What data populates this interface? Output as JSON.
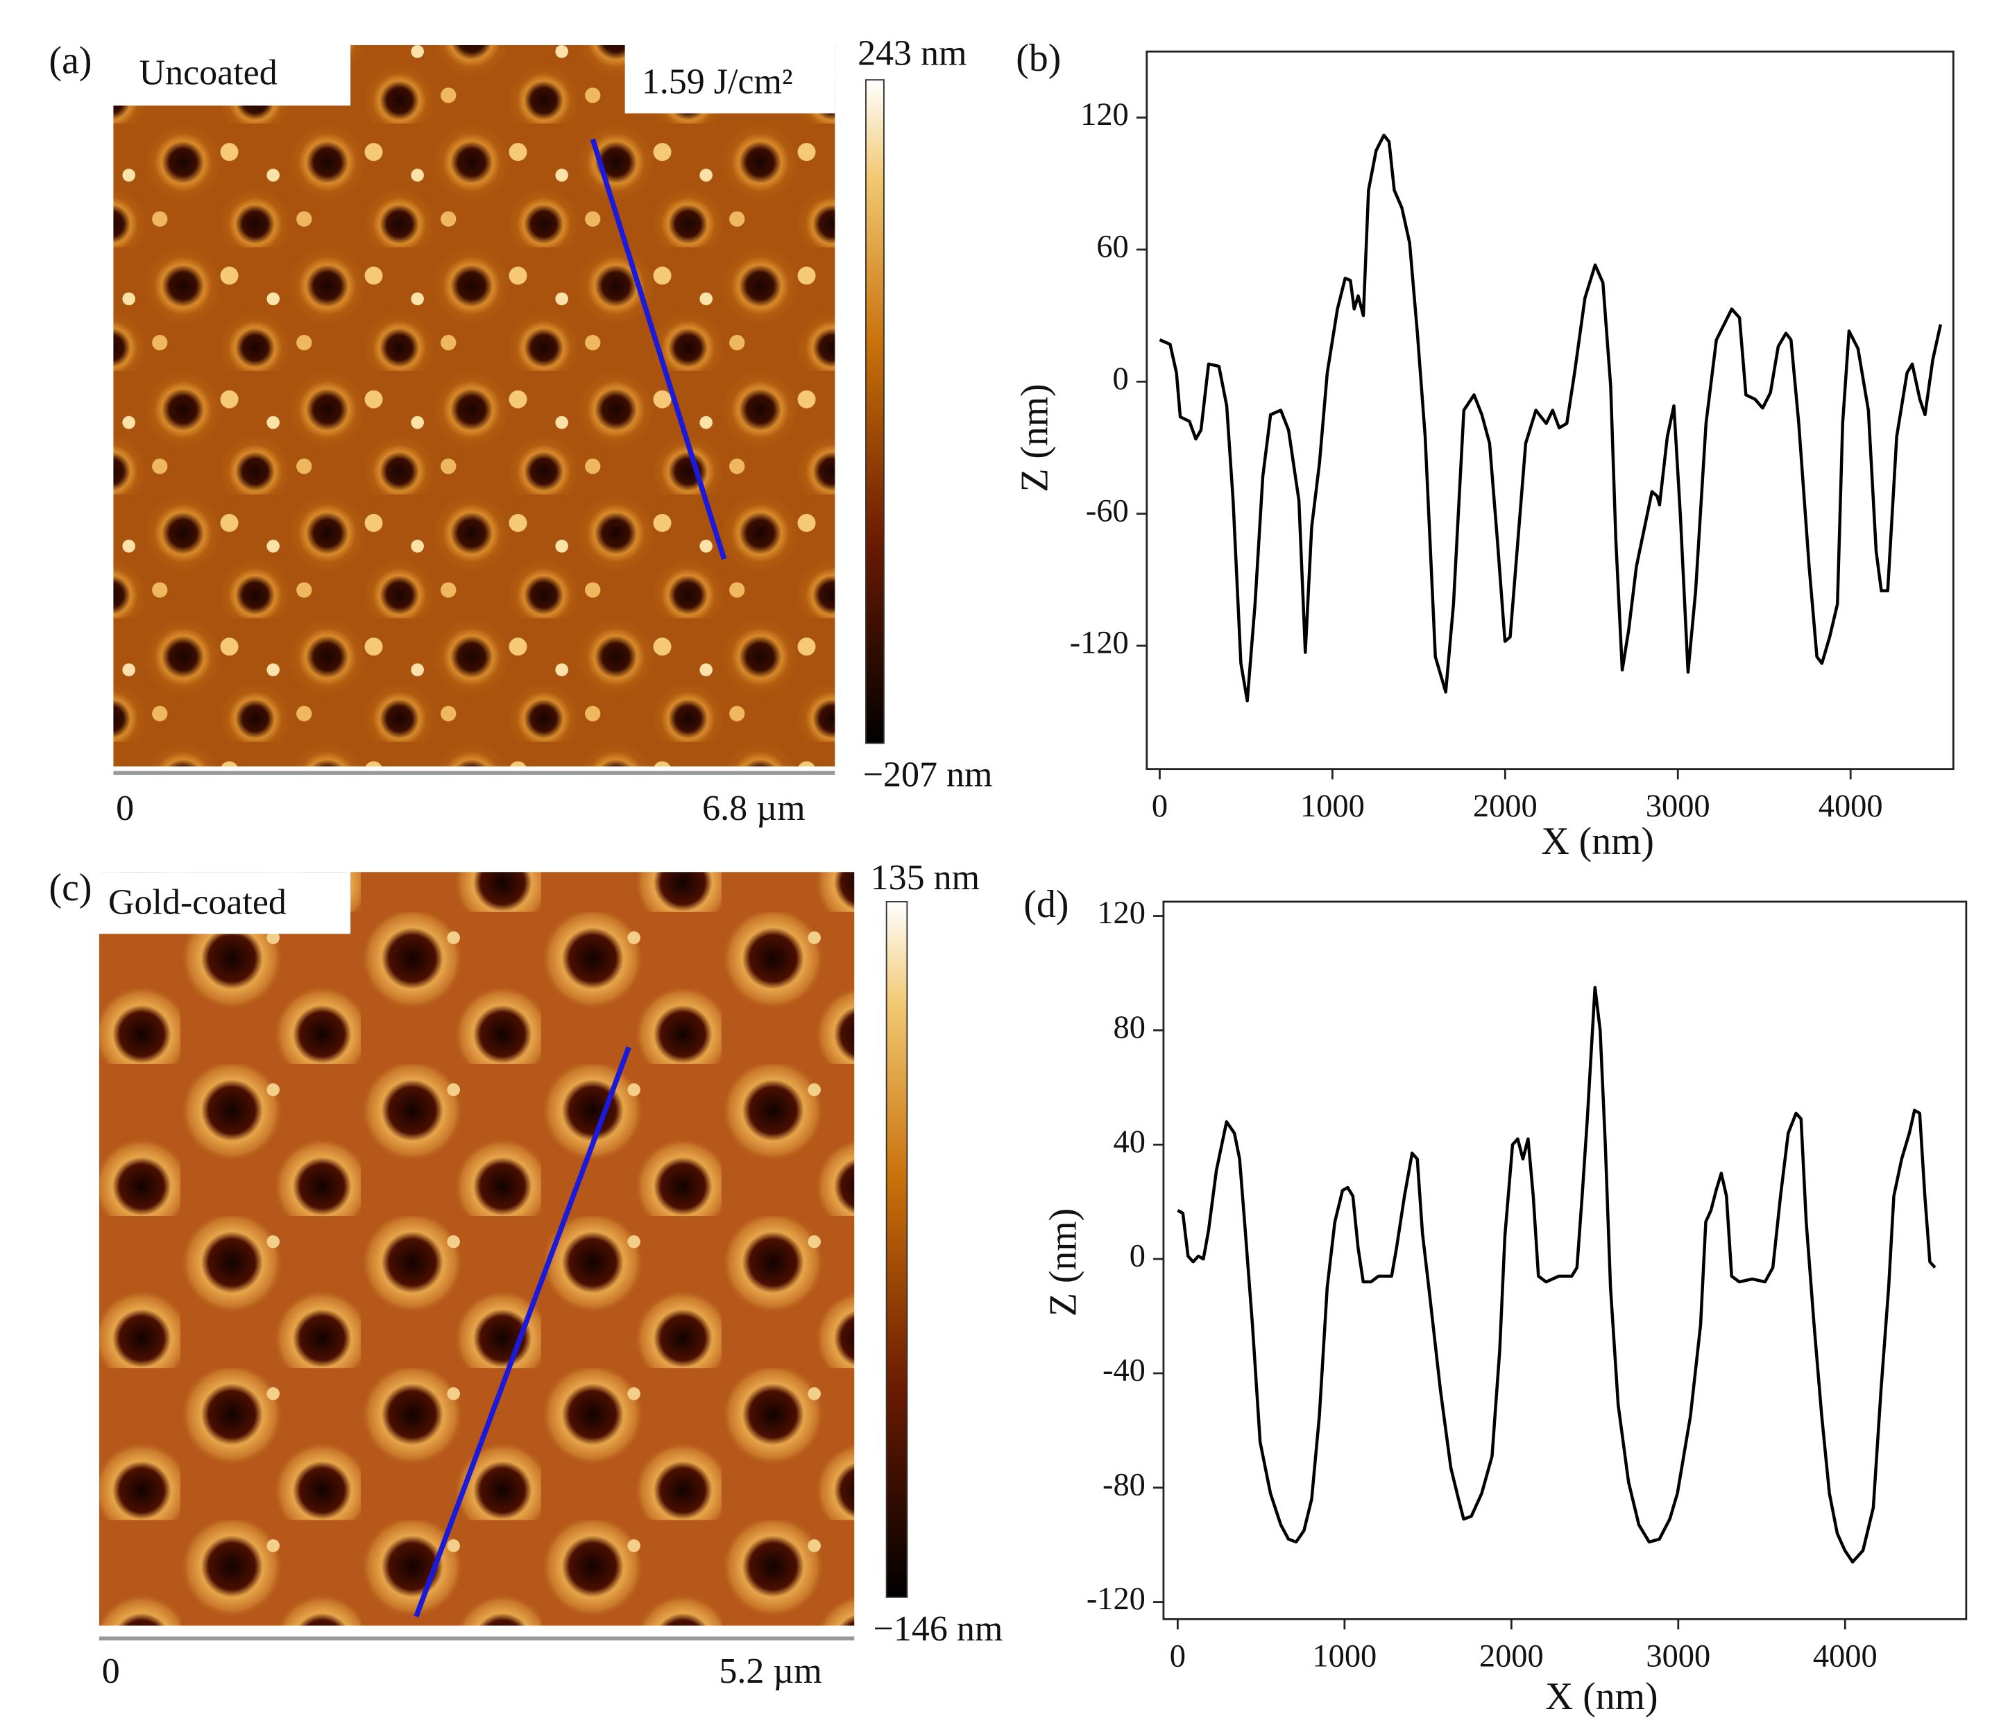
{
  "panels": [
    {
      "label": "(a)",
      "sample": "Uncoated",
      "fluence": "1.59 J/cm²",
      "colorbar_max": "243 nm",
      "colorbar_min": "−207 nm",
      "scale_start": "0",
      "scale_end": "6.8 µm"
    },
    {
      "label": "(c)",
      "sample": "Gold-coated",
      "colorbar_max": "135 nm",
      "colorbar_min": "−146 nm",
      "scale_start": "0",
      "scale_end": "5.2 µm"
    }
  ],
  "chart_data": [
    {
      "type": "line",
      "label": "(b)",
      "x_label": "X (nm)",
      "y_label": "Z (nm)",
      "x": [
        0,
        60,
        97,
        119,
        172,
        209,
        239,
        283,
        343,
        388,
        425,
        470,
        507,
        552,
        597,
        642,
        701,
        746,
        806,
        843,
        880,
        925,
        970,
        1029,
        1074,
        1104,
        1126,
        1149,
        1179,
        1209,
        1253,
        1298,
        1328,
        1358,
        1402,
        1447,
        1492,
        1537,
        1596,
        1656,
        1701,
        1761,
        1820,
        1865,
        1910,
        1955,
        1999,
        2029,
        2074,
        2119,
        2178,
        2238,
        2275,
        2313,
        2357,
        2402,
        2462,
        2521,
        2566,
        2611,
        2641,
        2678,
        2715,
        2760,
        2805,
        2850,
        2880,
        2894,
        2939,
        2977,
        3014,
        3059,
        3103,
        3163,
        3223,
        3312,
        3357,
        3394,
        3447,
        3491,
        3536,
        3581,
        3626,
        3655,
        3700,
        3760,
        3805,
        3834,
        3879,
        3924,
        3954,
        3991,
        4043,
        4103,
        4148,
        4178,
        4215,
        4267,
        4327,
        4357,
        4401,
        4431,
        4476,
        4521
      ],
      "series": [
        {
          "color": "#000000",
          "values": [
            19,
            17,
            4,
            -16,
            -18,
            -26,
            -22,
            8,
            7,
            -11,
            -54,
            -128,
            -145,
            -101,
            -43,
            -15,
            -13,
            -22,
            -54,
            -123,
            -66,
            -37,
            4,
            33,
            47,
            46,
            33,
            39,
            30,
            87,
            105,
            112,
            109,
            87,
            79,
            63,
            22,
            -25,
            -125,
            -141,
            -101,
            -13,
            -6,
            -15,
            -28,
            -72,
            -118,
            -116,
            -72,
            -28,
            -13,
            -19,
            -13,
            -21,
            -19,
            4,
            38,
            53,
            45,
            -2,
            -72,
            -131,
            -113,
            -84,
            -67,
            -50,
            -52,
            -56,
            -25,
            -11,
            -60,
            -132,
            -95,
            -19,
            19,
            33,
            29,
            -6,
            -8,
            -12,
            -5,
            16,
            22,
            19,
            -19,
            -84,
            -125,
            -128,
            -116,
            -101,
            -19,
            23,
            15,
            -13,
            -77,
            -95,
            -95,
            -25,
            4,
            8,
            -8,
            -15,
            10,
            26
          ]
        }
      ],
      "xlim": [
        -75,
        4595
      ],
      "ylim": [
        -176,
        150
      ],
      "xticks": [
        0,
        1000,
        2000,
        3000,
        4000
      ],
      "yticks": [
        -120,
        -60,
        0,
        60,
        120
      ]
    },
    {
      "type": "line",
      "label": "(d)",
      "x_label": "X (nm)",
      "y_label": "Z (nm)",
      "x": [
        0,
        31,
        62,
        93,
        124,
        154,
        185,
        232,
        293,
        340,
        371,
        401,
        448,
        494,
        556,
        618,
        664,
        710,
        757,
        803,
        849,
        896,
        942,
        988,
        1019,
        1050,
        1081,
        1112,
        1158,
        1204,
        1282,
        1312,
        1359,
        1405,
        1436,
        1467,
        1513,
        1575,
        1637,
        1683,
        1714,
        1760,
        1822,
        1884,
        1930,
        1961,
        2007,
        2038,
        2069,
        2100,
        2131,
        2162,
        2208,
        2285,
        2362,
        2393,
        2424,
        2455,
        2501,
        2532,
        2563,
        2594,
        2640,
        2702,
        2764,
        2826,
        2887,
        2949,
        2995,
        3073,
        3134,
        3165,
        3196,
        3227,
        3258,
        3289,
        3320,
        3366,
        3443,
        3520,
        3567,
        3613,
        3659,
        3706,
        3736,
        3767,
        3814,
        3860,
        3906,
        3953,
        3999,
        4045,
        4107,
        4169,
        4215,
        4261,
        4292,
        4339,
        4385,
        4416,
        4447,
        4478,
        4508,
        4539
      ],
      "series": [
        {
          "color": "#000000",
          "values": [
            17,
            16,
            1,
            -1,
            1,
            0,
            10,
            31,
            48,
            44,
            35,
            13,
            -23,
            -64,
            -82,
            -93,
            -98,
            -99,
            -95,
            -84,
            -55,
            -10,
            13,
            24,
            25,
            22,
            4,
            -8,
            -8,
            -6,
            -6,
            4,
            22,
            37,
            35,
            9,
            -14,
            -46,
            -73,
            -84,
            -91,
            -90,
            -82,
            -69,
            -32,
            8,
            40,
            42,
            35,
            42,
            22,
            -6,
            -8,
            -6,
            -6,
            -3,
            22,
            49,
            95,
            80,
            40,
            -10,
            -51,
            -78,
            -93,
            -99,
            -98,
            -91,
            -82,
            -55,
            -23,
            13,
            17,
            24,
            30,
            22,
            -6,
            -8,
            -7,
            -8,
            -3,
            22,
            44,
            51,
            49,
            13,
            -23,
            -55,
            -82,
            -96,
            -102,
            -106,
            -102,
            -87,
            -46,
            -10,
            22,
            35,
            44,
            52,
            51,
            22,
            -1,
            -3
          ]
        }
      ],
      "xlim": [
        -85,
        4726
      ],
      "ylim": [
        -126,
        125
      ],
      "xticks": [
        0,
        1000,
        2000,
        3000,
        4000
      ],
      "yticks": [
        -120,
        -80,
        -40,
        0,
        40,
        80,
        120
      ]
    }
  ]
}
